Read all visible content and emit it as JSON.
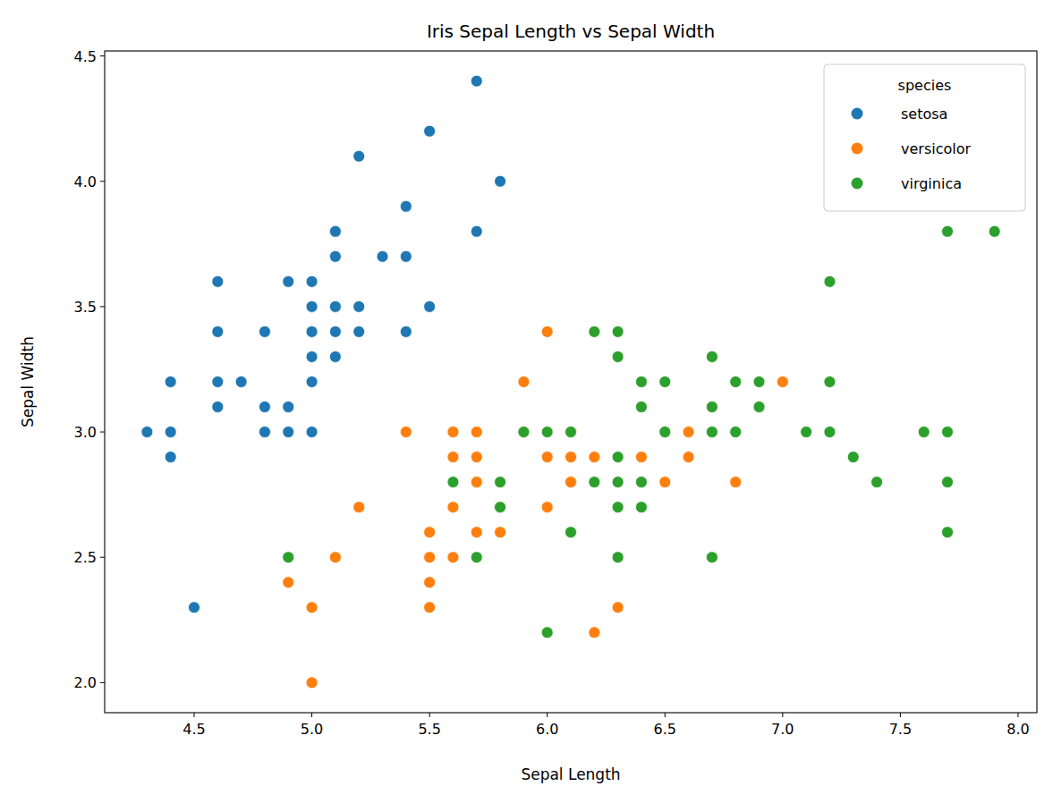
{
  "chart_data": {
    "type": "scatter",
    "title": "Iris Sepal Length vs Sepal Width",
    "x_label": "Sepal Length",
    "y_label": "Sepal Width",
    "legend_title": "species",
    "legend": "upper right",
    "grid": false,
    "marker": "circle",
    "xlim": [
      4.12,
      8.08
    ],
    "ylim": [
      1.88,
      4.52
    ],
    "xticks": [
      4.5,
      {
        "value": 5,
        "label": "5.0"
      },
      5.5,
      {
        "value": 6,
        "label": "6.0"
      },
      6.5,
      {
        "value": 7,
        "label": "7.0"
      },
      7.5,
      {
        "value": 8,
        "label": "8.0"
      }
    ],
    "yticks": [
      {
        "value": 2,
        "label": "2.0"
      },
      2.5,
      {
        "value": 3,
        "label": "3.0"
      },
      3.5,
      {
        "value": 4,
        "label": "4.0"
      },
      4.5
    ],
    "series": [
      {
        "name": "setosa",
        "color": "#1f77b4",
        "x": [
          5.1,
          4.9,
          4.7,
          4.6,
          5.0,
          5.4,
          4.6,
          5.0,
          4.4,
          4.9,
          5.4,
          4.8,
          4.8,
          4.3,
          5.8,
          5.7,
          5.4,
          5.1,
          5.7,
          5.1,
          5.4,
          5.1,
          4.6,
          5.1,
          4.8,
          5.0,
          5.0,
          5.2,
          5.2,
          4.7,
          4.8,
          5.4,
          5.2,
          5.5,
          4.9,
          5.0,
          5.5,
          4.9,
          4.4,
          5.1,
          5.0,
          4.5,
          4.4,
          5.0,
          5.1,
          4.8,
          5.1,
          4.6,
          5.3,
          5.0
        ],
        "values": [
          3.5,
          3.0,
          3.2,
          3.1,
          3.6,
          3.9,
          3.4,
          3.4,
          2.9,
          3.1,
          3.7,
          3.4,
          3.0,
          3.0,
          4.0,
          4.4,
          3.9,
          3.5,
          3.8,
          3.8,
          3.4,
          3.7,
          3.6,
          3.3,
          3.4,
          3.0,
          3.4,
          3.5,
          3.4,
          3.2,
          3.1,
          3.4,
          4.1,
          4.2,
          3.1,
          3.2,
          3.5,
          3.6,
          3.0,
          3.4,
          3.5,
          2.3,
          3.2,
          3.5,
          3.8,
          3.0,
          3.8,
          3.2,
          3.7,
          3.3
        ]
      },
      {
        "name": "versicolor",
        "color": "#ff7f0e",
        "x": [
          7.0,
          6.4,
          6.9,
          5.5,
          6.5,
          5.7,
          6.3,
          4.9,
          6.6,
          5.2,
          5.0,
          5.9,
          6.0,
          6.1,
          5.6,
          6.7,
          5.6,
          5.8,
          6.2,
          5.6,
          5.9,
          6.1,
          6.3,
          6.1,
          6.4,
          6.6,
          6.8,
          6.7,
          6.0,
          5.7,
          5.5,
          5.5,
          5.8,
          6.0,
          5.4,
          6.0,
          6.7,
          6.3,
          5.6,
          5.5,
          5.5,
          6.1,
          5.8,
          5.0,
          5.6,
          5.7,
          5.7,
          6.2,
          5.1,
          5.7
        ],
        "values": [
          3.2,
          3.2,
          3.1,
          2.3,
          2.8,
          2.8,
          3.3,
          2.4,
          2.9,
          2.7,
          2.0,
          3.0,
          2.2,
          2.9,
          2.9,
          3.1,
          3.0,
          2.7,
          2.2,
          2.5,
          3.2,
          2.8,
          2.5,
          2.8,
          2.9,
          3.0,
          2.8,
          3.0,
          2.9,
          2.6,
          2.4,
          2.4,
          2.7,
          2.7,
          3.0,
          3.4,
          3.1,
          2.3,
          3.0,
          2.5,
          2.6,
          3.0,
          2.6,
          2.3,
          2.7,
          3.0,
          2.9,
          2.9,
          2.5,
          2.8
        ]
      },
      {
        "name": "virginica",
        "color": "#2ca02c",
        "x": [
          6.3,
          5.8,
          7.1,
          6.3,
          6.5,
          7.6,
          4.9,
          7.3,
          6.7,
          7.2,
          6.5,
          6.4,
          6.8,
          5.7,
          5.8,
          6.4,
          6.5,
          7.7,
          7.7,
          6.0,
          6.9,
          5.6,
          7.7,
          6.3,
          6.7,
          7.2,
          6.2,
          6.1,
          6.4,
          7.2,
          7.4,
          7.9,
          6.4,
          6.3,
          6.1,
          7.7,
          6.3,
          6.4,
          6.0,
          6.9,
          6.7,
          6.9,
          5.8,
          6.8,
          6.7,
          6.7,
          6.3,
          6.5,
          6.2,
          5.9
        ],
        "values": [
          3.3,
          2.7,
          3.0,
          2.9,
          3.0,
          3.0,
          2.5,
          2.9,
          2.5,
          3.6,
          3.2,
          2.7,
          3.0,
          2.5,
          2.8,
          3.2,
          3.0,
          3.8,
          2.6,
          2.2,
          3.2,
          2.8,
          2.8,
          2.7,
          3.3,
          3.2,
          2.8,
          3.0,
          2.8,
          3.0,
          2.8,
          3.8,
          2.8,
          2.8,
          2.6,
          3.0,
          3.4,
          3.1,
          3.0,
          3.1,
          3.1,
          3.1,
          2.7,
          3.2,
          3.3,
          3.0,
          2.5,
          3.0,
          3.4,
          3.0
        ]
      }
    ]
  }
}
